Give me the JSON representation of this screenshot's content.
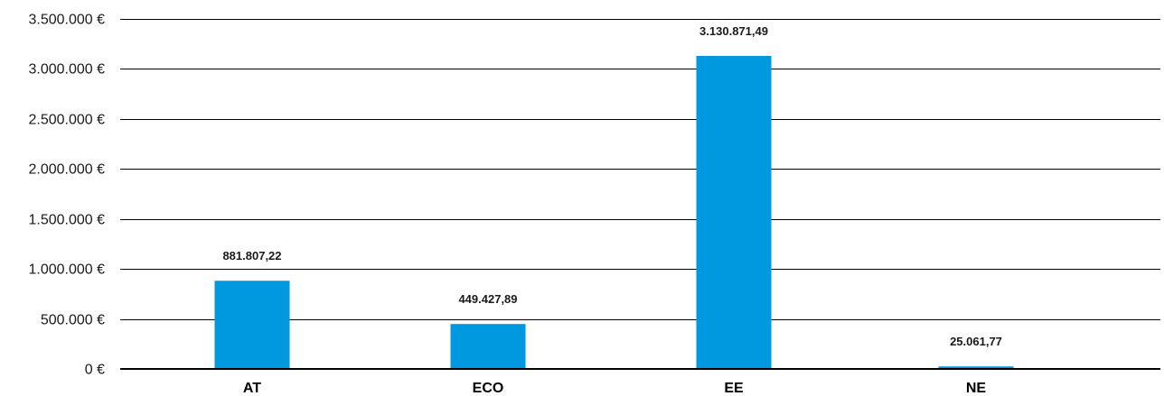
{
  "chart_data": {
    "type": "bar",
    "title": "",
    "xlabel": "",
    "ylabel": "",
    "categories": [
      "AT",
      "ECO",
      "EE",
      "NE"
    ],
    "values": [
      881807.22,
      449427.89,
      3130871.49,
      25061.77
    ],
    "data_labels": [
      "881.807,22",
      "449.427,89",
      "3.130.871,49",
      "25.061,77"
    ],
    "ylim": [
      0,
      3500000
    ],
    "yticks": [
      0,
      500000,
      1000000,
      1500000,
      2000000,
      2500000,
      3000000,
      3500000
    ],
    "ytick_labels": [
      "0 €",
      "500.000 €",
      "1.000.000 €",
      "1.500.000 €",
      "2.000.000 €",
      "2.500.000 €",
      "3.000.000 €",
      "3.500.000 €"
    ],
    "grid": true,
    "legend": "none",
    "colors": {
      "bar": "#0099e0",
      "grid": "#000000",
      "axis": "#000000",
      "text": "#1a1a1a"
    }
  }
}
